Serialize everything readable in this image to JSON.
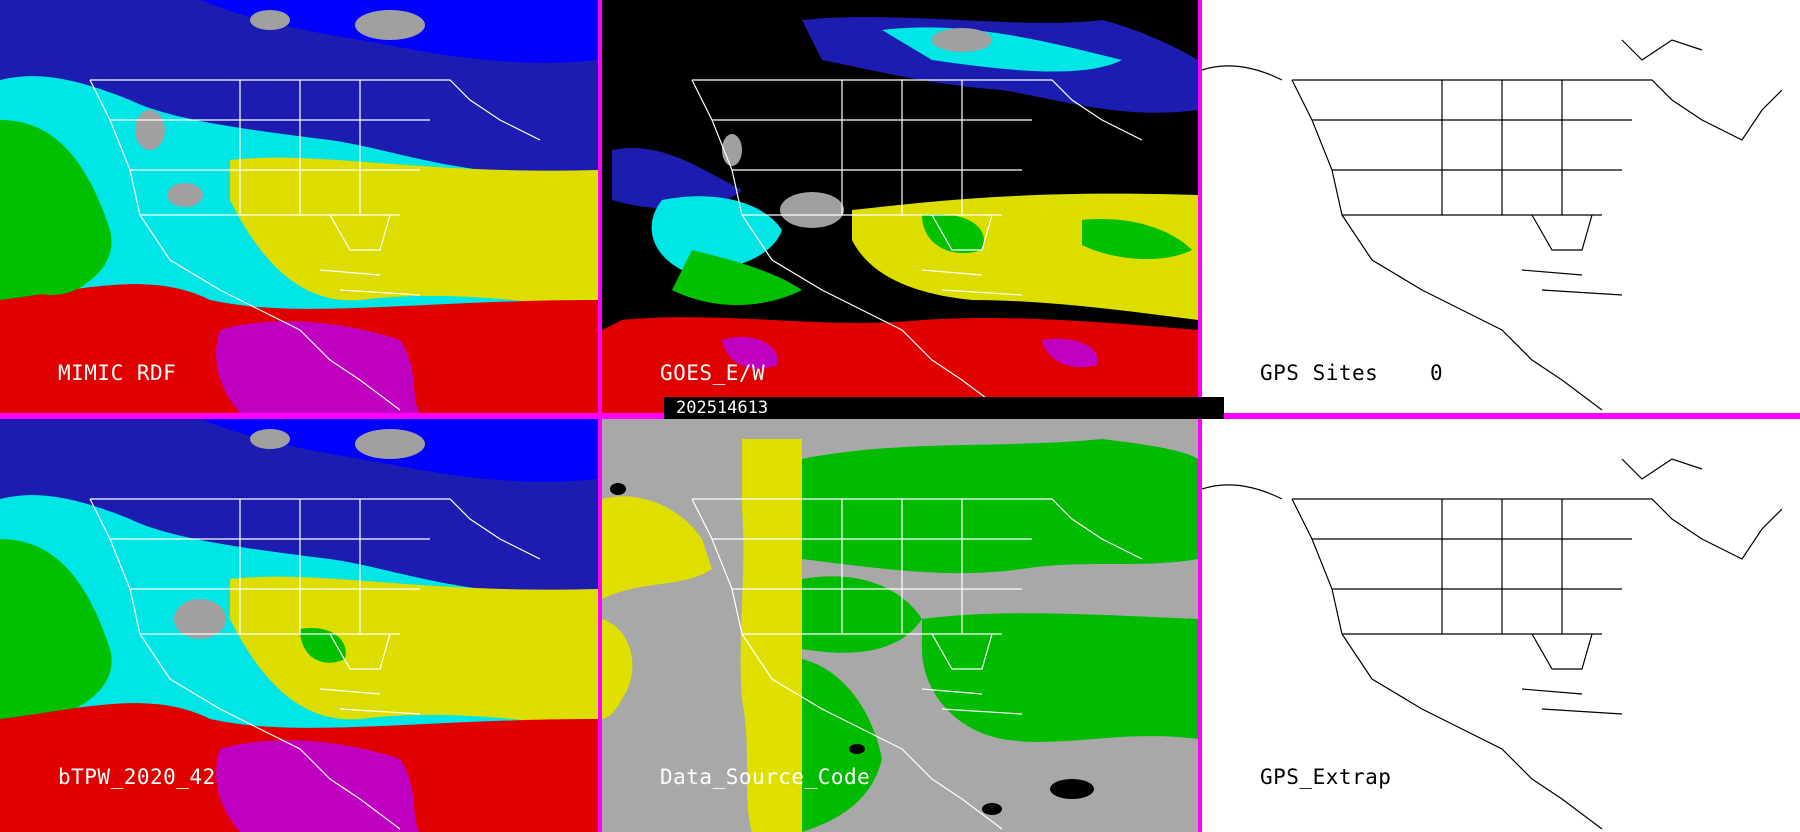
{
  "panels": {
    "mimic_rdf": {
      "label": "MIMIC RDF"
    },
    "goes_ew": {
      "label": "GOES_E/W"
    },
    "gps_sites": {
      "label": "GPS Sites",
      "count": "0"
    },
    "btpw": {
      "label": "bTPW_2020_42"
    },
    "data_source": {
      "label": "Data_Source_Code"
    },
    "gps_extrap": {
      "label": "GPS_Extrap"
    }
  },
  "timestamp": "202514613",
  "colors": {
    "frame": "#ff00ff",
    "map_lines_on_color": "#ffffff",
    "map_lines_on_white": "#000000",
    "tpw_palette": [
      "#ffffff",
      "#a0a0a0",
      "#0000ff",
      "#1c1cb0",
      "#00e5e5",
      "#00c000",
      "#dddd00",
      "#e00000",
      "#c000c0"
    ],
    "source_palette": {
      "yellow": "#e0e000",
      "green": "#00bb00",
      "gray": "#a8a8a8",
      "black": "#000000"
    }
  }
}
